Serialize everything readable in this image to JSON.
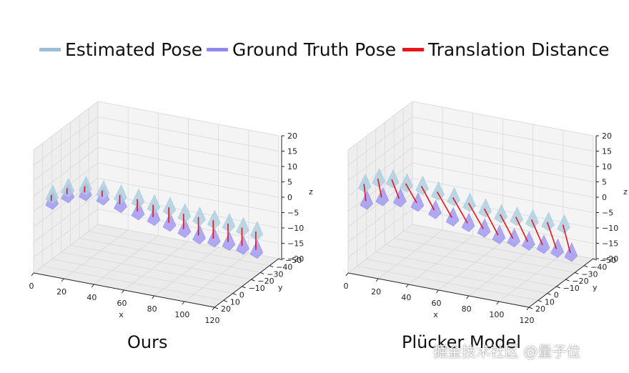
{
  "legend": {
    "items": [
      {
        "label": "Estimated Pose",
        "color": "#9bbdd6"
      },
      {
        "label": "Ground Truth Pose",
        "color": "#8f88ee"
      },
      {
        "label": "Translation Distance",
        "color": "#e8141b"
      }
    ]
  },
  "colors": {
    "estimated": "#a9cde0",
    "ground_truth": "#9b93f2",
    "translation": "#e8141b",
    "grid": "#d9d9d9",
    "pane": "#f2f2f2"
  },
  "chart_data": [
    {
      "type": "scatter",
      "subtype": "3d-camera-trajectory",
      "caption": "Ours",
      "xlabel": "x",
      "ylabel": "y",
      "zlabel": "z",
      "xlim": [
        0,
        120
      ],
      "ylim": [
        -50,
        20
      ],
      "zlim": [
        -20,
        20
      ],
      "x_ticks": [
        "0",
        "20",
        "40",
        "60",
        "80",
        "100",
        "120"
      ],
      "y_ticks": [
        "20",
        "10",
        "0",
        "−10",
        "−20",
        "−30",
        "−40",
        "−50"
      ],
      "z_ticks": [
        "20",
        "15",
        "10",
        "5",
        "0",
        "−5",
        "−10",
        "−15",
        "−20"
      ],
      "series": [
        {
          "name": "Estimated Pose",
          "points": [
            [
              2,
              4,
              2
            ],
            [
              10,
              0,
              4
            ],
            [
              18,
              -6,
              4
            ],
            [
              26,
              -12,
              2
            ],
            [
              34,
              -18,
              0
            ],
            [
              42,
              -24,
              -2
            ],
            [
              50,
              -28,
              -4
            ],
            [
              58,
              -32,
              -5
            ],
            [
              66,
              -35,
              -7
            ],
            [
              74,
              -38,
              -8
            ],
            [
              82,
              -41,
              -9
            ],
            [
              90,
              -44,
              -10
            ],
            [
              98,
              -46,
              -11
            ],
            [
              106,
              -48,
              -12
            ]
          ]
        },
        {
          "name": "Ground Truth Pose",
          "points": [
            [
              2,
              4,
              0
            ],
            [
              10,
              0,
              2
            ],
            [
              18,
              -6,
              2
            ],
            [
              26,
              -12,
              0
            ],
            [
              34,
              -18,
              -3
            ],
            [
              42,
              -24,
              -6
            ],
            [
              50,
              -28,
              -8
            ],
            [
              58,
              -32,
              -10
            ],
            [
              66,
              -35,
              -12
            ],
            [
              74,
              -38,
              -14
            ],
            [
              82,
              -41,
              -15
            ],
            [
              90,
              -44,
              -16
            ],
            [
              98,
              -46,
              -17
            ],
            [
              106,
              -48,
              -18
            ]
          ]
        }
      ]
    },
    {
      "type": "scatter",
      "subtype": "3d-camera-trajectory",
      "caption": "Plücker Model",
      "xlabel": "x",
      "ylabel": "y",
      "zlabel": "z",
      "xlim": [
        0,
        120
      ],
      "ylim": [
        -50,
        20
      ],
      "zlim": [
        -20,
        20
      ],
      "x_ticks": [
        "0",
        "20",
        "40",
        "60",
        "80",
        "100",
        "120"
      ],
      "y_ticks": [
        "20",
        "10",
        "0",
        "−10",
        "−20",
        "−30",
        "−40",
        "−50"
      ],
      "z_ticks": [
        "20",
        "15",
        "10",
        "5",
        "0",
        "−5",
        "−10",
        "−15",
        "−20"
      ],
      "series": [
        {
          "name": "Estimated Pose",
          "points": [
            [
              2,
              6,
              6
            ],
            [
              10,
              4,
              8
            ],
            [
              18,
              2,
              8
            ],
            [
              26,
              0,
              7
            ],
            [
              34,
              -4,
              6
            ],
            [
              42,
              -8,
              4
            ],
            [
              50,
              -12,
              2
            ],
            [
              58,
              -16,
              0
            ],
            [
              66,
              -20,
              -2
            ],
            [
              74,
              -24,
              -4
            ],
            [
              82,
              -28,
              -5
            ],
            [
              90,
              -32,
              -6
            ],
            [
              98,
              -36,
              -7
            ],
            [
              106,
              -40,
              -8
            ]
          ]
        },
        {
          "name": "Ground Truth Pose",
          "points": [
            [
              2,
              4,
              0
            ],
            [
              10,
              0,
              1
            ],
            [
              18,
              -6,
              0
            ],
            [
              26,
              -12,
              -2
            ],
            [
              34,
              -18,
              -5
            ],
            [
              42,
              -24,
              -8
            ],
            [
              50,
              -28,
              -10
            ],
            [
              58,
              -32,
              -12
            ],
            [
              66,
              -35,
              -14
            ],
            [
              74,
              -38,
              -15
            ],
            [
              82,
              -41,
              -16
            ],
            [
              90,
              -44,
              -17
            ],
            [
              98,
              -46,
              -18
            ],
            [
              106,
              -48,
              -19
            ]
          ]
        }
      ]
    }
  ],
  "watermark": "掘金技术社区 @量子位"
}
